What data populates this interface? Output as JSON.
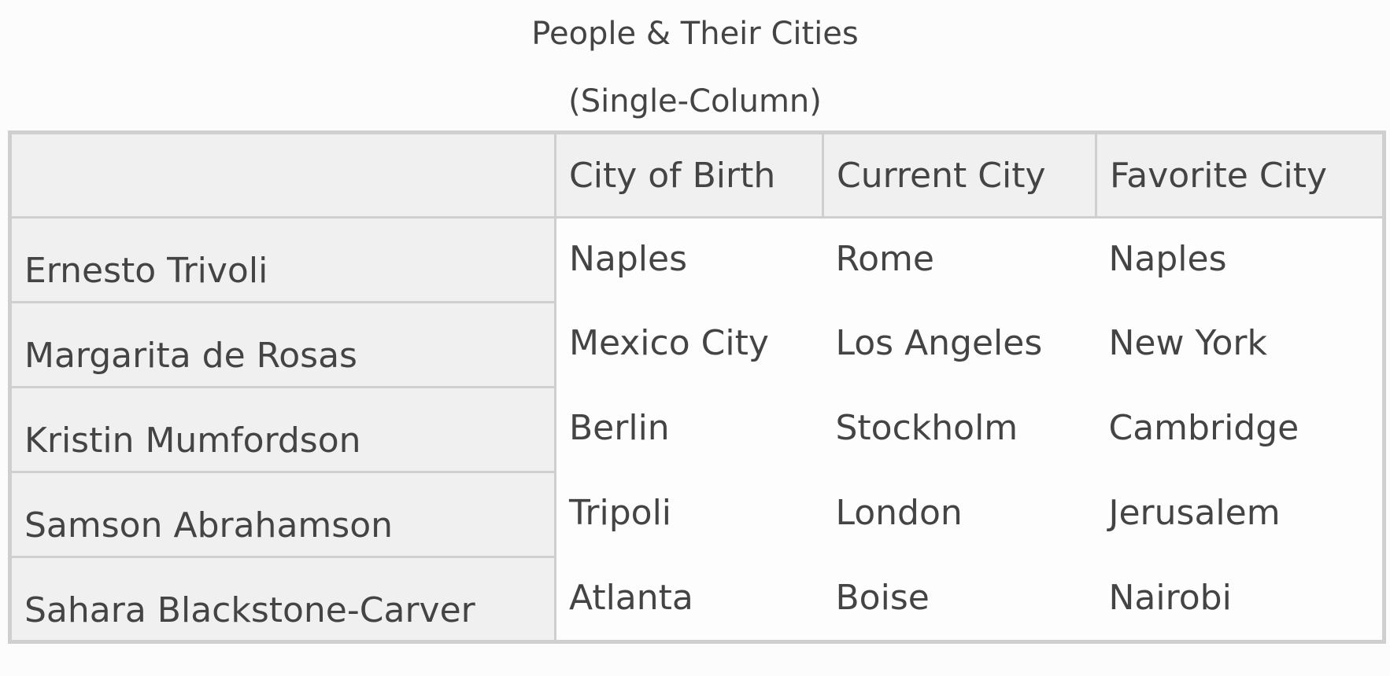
{
  "caption": {
    "line1": "People & Their Cities",
    "line2": "(Single-Column)"
  },
  "table": {
    "columns": [
      "",
      "City of Birth",
      "Current City",
      "Favorite City"
    ],
    "rows": [
      {
        "name": "Ernesto Trivoli",
        "birth": "Naples",
        "current": "Rome",
        "favorite": "Naples"
      },
      {
        "name": "Margarita de Rosas",
        "birth": "Mexico City",
        "current": "Los Angeles",
        "favorite": "New York"
      },
      {
        "name": "Kristin Mumfordson",
        "birth": "Berlin",
        "current": "Stockholm",
        "favorite": "Cambridge"
      },
      {
        "name": "Samson Abrahamson",
        "birth": "Tripoli",
        "current": "London",
        "favorite": "Jerusalem"
      },
      {
        "name": "Sahara Blackstone-Carver",
        "birth": "Atlanta",
        "current": "Boise",
        "favorite": "Nairobi"
      }
    ]
  }
}
